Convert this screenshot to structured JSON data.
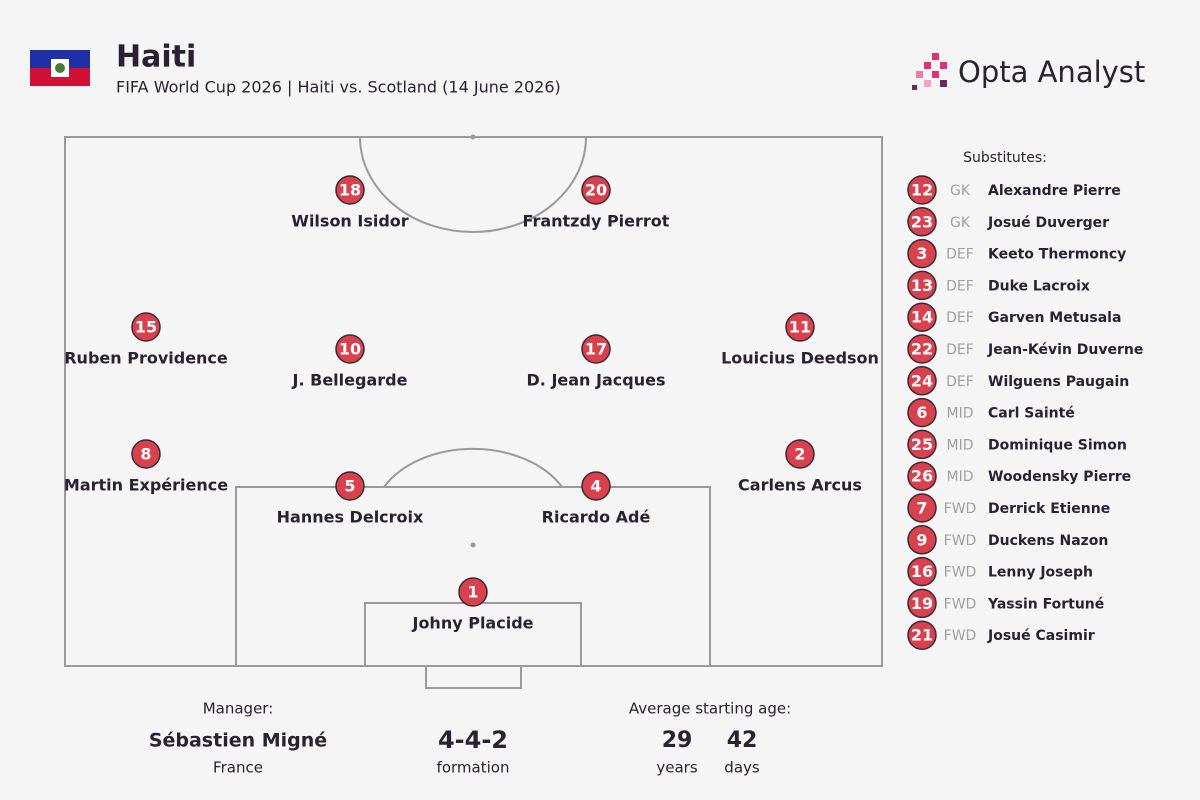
{
  "header": {
    "title": "Haiti",
    "subtitle": "FIFA World Cup 2026 | Haiti vs. Scotland (14 June 2026)",
    "brand": "Opta Analyst"
  },
  "lineup": [
    {
      "number": 18,
      "name": "Wilson Isidor"
    },
    {
      "number": 20,
      "name": "Frantzdy Pierrot"
    },
    {
      "number": 15,
      "name": "Ruben Providence"
    },
    {
      "number": 10,
      "name": "J. Bellegarde"
    },
    {
      "number": 17,
      "name": "D. Jean Jacques"
    },
    {
      "number": 11,
      "name": "Louicius Deedson"
    },
    {
      "number": 8,
      "name": "Martin Expérience"
    },
    {
      "number": 5,
      "name": "Hannes Delcroix"
    },
    {
      "number": 4,
      "name": "Ricardo Adé"
    },
    {
      "number": 2,
      "name": "Carlens Arcus"
    },
    {
      "number": 1,
      "name": "Johny Placide"
    }
  ],
  "substitutes": {
    "label": "Substitutes:",
    "players": [
      {
        "number": 12,
        "position": "GK",
        "name": "Alexandre Pierre"
      },
      {
        "number": 23,
        "position": "GK",
        "name": "Josué Duverger"
      },
      {
        "number": 3,
        "position": "DEF",
        "name": "Keeto Thermoncy"
      },
      {
        "number": 13,
        "position": "DEF",
        "name": "Duke Lacroix"
      },
      {
        "number": 14,
        "position": "DEF",
        "name": "Garven Metusala"
      },
      {
        "number": 22,
        "position": "DEF",
        "name": "Jean-Kévin Duverne"
      },
      {
        "number": 24,
        "position": "DEF",
        "name": "Wilguens Paugain"
      },
      {
        "number": 6,
        "position": "MID",
        "name": "Carl Sainté"
      },
      {
        "number": 25,
        "position": "MID",
        "name": "Dominique Simon"
      },
      {
        "number": 26,
        "position": "MID",
        "name": "Woodensky Pierre"
      },
      {
        "number": 7,
        "position": "FWD",
        "name": "Derrick Etienne"
      },
      {
        "number": 9,
        "position": "FWD",
        "name": "Duckens Nazon"
      },
      {
        "number": 16,
        "position": "FWD",
        "name": "Lenny Joseph"
      },
      {
        "number": 19,
        "position": "FWD",
        "name": "Yassin Fortuné"
      },
      {
        "number": 21,
        "position": "FWD",
        "name": "Josué Casimir"
      }
    ]
  },
  "footer": {
    "manager_label": "Manager:",
    "manager": "Sébastien Migné",
    "manager_country": "France",
    "formation": "4-4-2",
    "formation_label": "formation",
    "age_label": "Average starting age:",
    "years": 29,
    "years_label": "years",
    "days": 42,
    "days_label": "days"
  }
}
